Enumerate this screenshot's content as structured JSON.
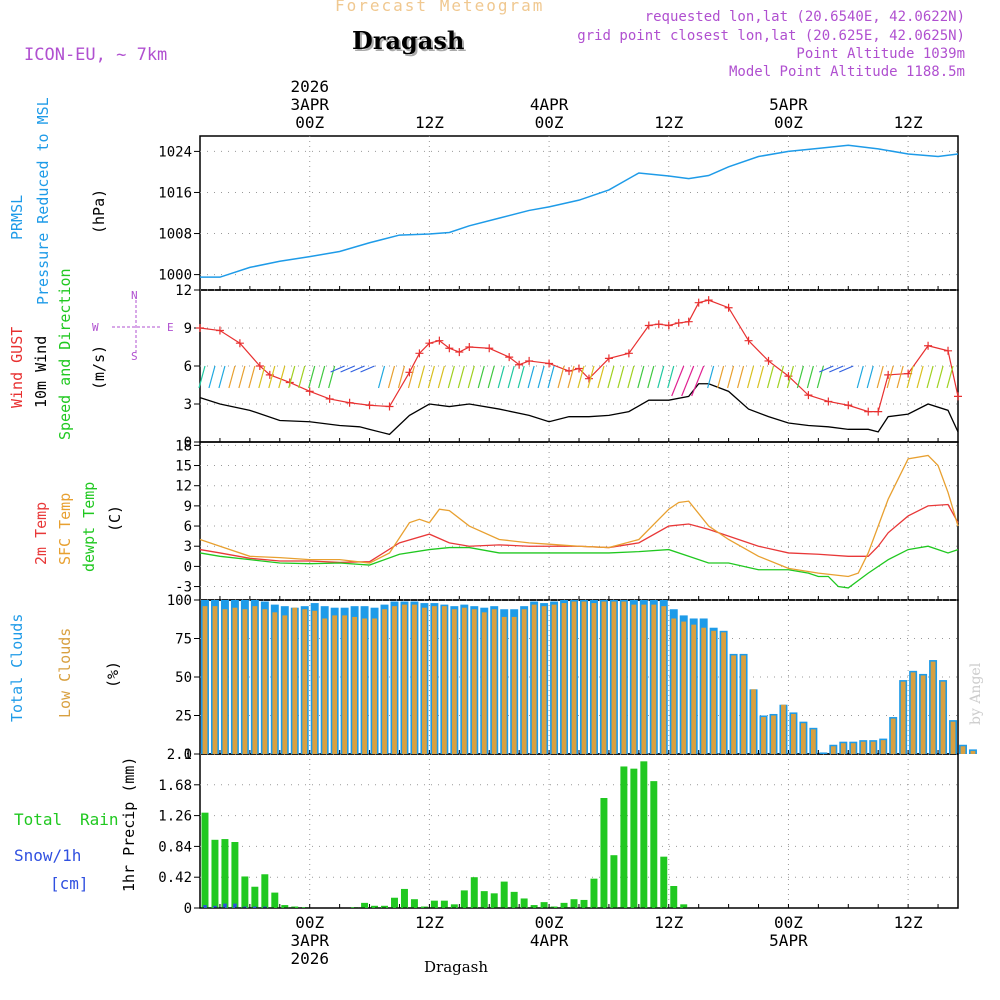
{
  "header": {
    "subtitle": "Forecast Meteogram",
    "location": "Dragash",
    "model": "ICON-EU, ~ 7km",
    "requested": "requested lon,lat (20.6540E, 42.0622N)",
    "grid_point": "grid point closest lon,lat (20.625E, 42.0625N)",
    "point_alt": "Point Altitude 1039m",
    "model_alt": "Model Point Altitude 1188.5m"
  },
  "time_axis": {
    "top": [
      {
        "lines": [
          "2026",
          "3APR",
          "00Z"
        ],
        "hour": 24
      },
      {
        "lines": [
          "12Z"
        ],
        "hour": 36
      },
      {
        "lines": [
          "4APR",
          "00Z"
        ],
        "hour": 48
      },
      {
        "lines": [
          "12Z"
        ],
        "hour": 60
      },
      {
        "lines": [
          "5APR",
          "00Z"
        ],
        "hour": 72
      },
      {
        "lines": [
          "12Z"
        ],
        "hour": 84
      }
    ],
    "bottom": [
      {
        "lines": [
          "00Z",
          "3APR",
          "2026"
        ],
        "hour": 24
      },
      {
        "lines": [
          "12Z"
        ],
        "hour": 36
      },
      {
        "lines": [
          "00Z",
          "4APR"
        ],
        "hour": 48
      },
      {
        "lines": [
          "12Z"
        ],
        "hour": 60
      },
      {
        "lines": [
          "00Z",
          "5APR"
        ],
        "hour": 72
      },
      {
        "lines": [
          "12Z"
        ],
        "hour": 84
      }
    ],
    "hour_range": [
      13,
      89
    ]
  },
  "labels": {
    "prmsl": "PRMSL",
    "pressure": "Pressure Reduced to MSL",
    "hpa": "(hPa)",
    "gust": "Wind GUST",
    "wind10": "10m Wind",
    "speed_dir": "Speed and Direction",
    "ms": "(m/s)",
    "compass_n": "N",
    "compass_s": "S",
    "compass_w": "W",
    "compass_e": "E",
    "t2m": "2m Temp",
    "sfc": "SFC Temp",
    "dewpt": "dewpt Temp",
    "celsius": "(C)",
    "total_clouds": "Total Clouds",
    "low_clouds": "Low Clouds",
    "pct": "(%)",
    "total": "Total",
    "rain": "Rain",
    "snow": "Snow/1h",
    "cm": "[cm]",
    "precip": "1hr Precip (mm)",
    "watermark": "by Angel",
    "footer_location": "Dragash"
  },
  "colors": {
    "pressure": "#1e9be8",
    "gust": "#e83030",
    "wind": "#000000",
    "t2m": "#e83838",
    "sfc": "#e8a030",
    "dew": "#20c820",
    "total_cloud": "#1e9be8",
    "low_cloud": "#d8a040",
    "rain": "#20c820",
    "snow": "#3050e0",
    "label_purple": "#b050d0"
  },
  "chart_data": [
    {
      "type": "line",
      "title": "PRMSL Pressure Reduced to MSL",
      "ylabel": "(hPa)",
      "ylim": [
        997,
        1027
      ],
      "yticks": [
        1000,
        1008,
        1016,
        1024
      ],
      "series": [
        {
          "name": "PRMSL",
          "x": [
            13,
            15,
            18,
            21,
            24,
            27,
            30,
            33,
            36,
            38,
            40,
            43,
            46,
            48,
            51,
            54,
            57,
            60,
            62,
            64,
            66,
            69,
            72,
            75,
            78,
            81,
            84,
            87,
            89
          ],
          "values": [
            999.5,
            999.5,
            1001.4,
            1002.6,
            1003.5,
            1004.5,
            1006.2,
            1007.7,
            1007.9,
            1008.2,
            1009.5,
            1011,
            1012.5,
            1013.2,
            1014.5,
            1016.5,
            1019.8,
            1019.2,
            1018.7,
            1019.3,
            1021,
            1023,
            1024,
            1024.6,
            1025.2,
            1024.5,
            1023.5,
            1023,
            1023.5
          ]
        }
      ]
    },
    {
      "type": "line",
      "title": "Wind GUST / 10m Wind Speed and Direction",
      "ylabel": "(m/s)",
      "ylim": [
        0,
        12
      ],
      "yticks": [
        0,
        3,
        6,
        9,
        12
      ],
      "series": [
        {
          "name": "Wind GUST",
          "x": [
            13,
            15,
            17,
            19,
            20,
            22,
            24,
            26,
            28,
            30,
            32,
            34,
            35,
            36,
            37,
            38,
            39,
            40,
            42,
            44,
            45,
            46,
            48,
            50,
            51,
            52,
            54,
            56,
            58,
            59,
            60,
            61,
            62,
            63,
            64,
            66,
            68,
            70,
            72,
            74,
            76,
            78,
            80,
            81,
            82,
            84,
            86,
            88,
            89
          ],
          "values": [
            9,
            8.8,
            7.8,
            6,
            5.3,
            4.7,
            4,
            3.4,
            3.1,
            2.9,
            2.8,
            5.5,
            7,
            7.8,
            8,
            7.4,
            7.1,
            7.5,
            7.4,
            6.7,
            6.1,
            6.4,
            6.2,
            5.6,
            5.8,
            5,
            6.6,
            7,
            9.2,
            9.3,
            9.2,
            9.4,
            9.5,
            11,
            11.2,
            10.6,
            8,
            6.4,
            5.2,
            3.7,
            3.2,
            2.9,
            2.4,
            2.4,
            5.3,
            5.4,
            7.6,
            7.2,
            3.6
          ]
        },
        {
          "name": "10m Wind",
          "x": [
            13,
            15,
            18,
            21,
            24,
            27,
            29,
            30,
            32,
            34,
            36,
            38,
            40,
            43,
            46,
            48,
            50,
            52,
            54,
            56,
            58,
            60,
            62,
            63,
            64,
            66,
            68,
            70,
            72,
            74,
            76,
            78,
            80,
            81,
            82,
            84,
            86,
            88,
            89
          ],
          "values": [
            3.5,
            3,
            2.5,
            1.7,
            1.6,
            1.3,
            1.2,
            1,
            0.6,
            2.1,
            3,
            2.8,
            3,
            2.6,
            2.1,
            1.6,
            2,
            2,
            2.1,
            2.4,
            3.3,
            3.3,
            3.6,
            4.6,
            4.6,
            4,
            2.6,
            2,
            1.5,
            1.3,
            1.2,
            1,
            1,
            0.8,
            2,
            2.2,
            3,
            2.5,
            0.8
          ]
        }
      ],
      "wind_direction": "arrows drawn at 6 m/s line, mostly from NE/ENE"
    },
    {
      "type": "line",
      "title": "2m Temp / SFC Temp / dewpt Temp",
      "ylabel": "(C)",
      "ylim": [
        -5,
        18.5
      ],
      "yticks": [
        -3,
        0,
        3,
        6,
        9,
        12,
        15,
        18
      ],
      "series": [
        {
          "name": "2m Temp",
          "x": [
            13,
            15,
            18,
            21,
            24,
            27,
            30,
            33,
            36,
            38,
            40,
            43,
            46,
            48,
            51,
            54,
            57,
            60,
            62,
            64,
            66,
            69,
            72,
            75,
            78,
            80,
            81,
            82,
            84,
            86,
            88,
            89
          ],
          "values": [
            2.5,
            2,
            1.2,
            0.8,
            0.8,
            0.6,
            0.7,
            3.5,
            4.8,
            3.5,
            3,
            3.2,
            3,
            3,
            3,
            2.8,
            3.5,
            6,
            6.3,
            5.5,
            4.5,
            3,
            2,
            1.8,
            1.5,
            1.5,
            3,
            5,
            7.5,
            9,
            9.2,
            6.5
          ]
        },
        {
          "name": "SFC Temp",
          "x": [
            13,
            15,
            18,
            21,
            24,
            27,
            30,
            32,
            34,
            35,
            36,
            37,
            38,
            40,
            43,
            46,
            48,
            51,
            54,
            57,
            59,
            60,
            61,
            62,
            64,
            66,
            69,
            72,
            75,
            78,
            79,
            80,
            82,
            84,
            86,
            87,
            88,
            89
          ],
          "values": [
            4,
            3,
            1.5,
            1.3,
            1,
            1,
            0.5,
            2,
            6.5,
            7,
            6.5,
            8.5,
            8.3,
            6,
            4,
            3.5,
            3.3,
            3,
            2.8,
            4,
            7,
            8.5,
            9.5,
            9.7,
            6,
            4,
            1.5,
            -0.3,
            -1,
            -1.5,
            -1,
            2,
            10,
            16,
            16.5,
            15,
            11,
            6
          ]
        },
        {
          "name": "dewpt Temp",
          "x": [
            13,
            15,
            18,
            21,
            24,
            27,
            30,
            33,
            36,
            38,
            40,
            43,
            46,
            48,
            51,
            54,
            57,
            60,
            62,
            64,
            66,
            69,
            72,
            74,
            75,
            76,
            77,
            78,
            80,
            82,
            84,
            86,
            88,
            89
          ],
          "values": [
            2,
            1.5,
            1,
            0.5,
            0.4,
            0.5,
            0.2,
            1.8,
            2.5,
            2.8,
            2.8,
            2,
            2,
            2,
            2,
            2,
            2.2,
            2.5,
            1.5,
            0.5,
            0.5,
            -0.5,
            -0.5,
            -1,
            -1.5,
            -1.5,
            -3,
            -3.2,
            -1,
            1,
            2.5,
            3,
            2,
            2.5
          ]
        }
      ]
    },
    {
      "type": "bar",
      "title": "Total Clouds / Low Clouds",
      "ylabel": "(%)",
      "ylim": [
        0,
        100
      ],
      "yticks": [
        0,
        25,
        50,
        75,
        100
      ],
      "x_start_hour": 13,
      "series": [
        {
          "name": "Total Clouds",
          "values": [
            100,
            100,
            100,
            100,
            100,
            100,
            99,
            97,
            96,
            95,
            96,
            98,
            96,
            95,
            95,
            96,
            96,
            95,
            97,
            99,
            99,
            99,
            98,
            98,
            97,
            96,
            97,
            96,
            95,
            96,
            94,
            94,
            96,
            99,
            98,
            99,
            100,
            100,
            100,
            100,
            100,
            100,
            100,
            100,
            100,
            100,
            100,
            94,
            90,
            88,
            88,
            82,
            80,
            65,
            65,
            42,
            25,
            26,
            32,
            27,
            21,
            17,
            1,
            6,
            8,
            8,
            9,
            9,
            10,
            24,
            48,
            54,
            52,
            61,
            48,
            22,
            6,
            3
          ]
        },
        {
          "name": "Low Clouds",
          "values": [
            96,
            96,
            94,
            95,
            94,
            96,
            94,
            92,
            90,
            95,
            94,
            93,
            88,
            90,
            90,
            89,
            88,
            88,
            94,
            96,
            97,
            97,
            95,
            96,
            96,
            94,
            95,
            94,
            92,
            94,
            89,
            89,
            94,
            97,
            96,
            97,
            98,
            99,
            99,
            98,
            99,
            99,
            99,
            97,
            97,
            97,
            96,
            88,
            86,
            84,
            82,
            80,
            79,
            64,
            64,
            42,
            24,
            25,
            32,
            26,
            20,
            16,
            0,
            5,
            7,
            7,
            8,
            8,
            9,
            23,
            47,
            53,
            51,
            60,
            47,
            21,
            5,
            2
          ]
        }
      ]
    },
    {
      "type": "bar",
      "title": "1hr Precip (mm)",
      "ylabel": "1hr Precip (mm)",
      "ylim": [
        0,
        2.1
      ],
      "yticks": [
        0,
        0.42,
        0.84,
        1.26,
        1.68,
        2.1
      ],
      "x_start_hour": 13,
      "series": [
        {
          "name": "Total Rain",
          "values": [
            1.3,
            0.93,
            0.94,
            0.9,
            0.43,
            0.29,
            0.46,
            0.21,
            0.04,
            0.02,
            0.01,
            0,
            0,
            0,
            0,
            0.01,
            0.07,
            0.03,
            0.03,
            0.14,
            0.26,
            0.12,
            0.02,
            0.1,
            0.1,
            0.05,
            0.24,
            0.42,
            0.23,
            0.2,
            0.36,
            0.22,
            0.13,
            0.04,
            0.08,
            0.02,
            0.07,
            0.12,
            0.11,
            0.4,
            1.5,
            0.72,
            1.93,
            1.9,
            2.0,
            1.73,
            0.7,
            0.3,
            0.05,
            0,
            0,
            0,
            0,
            0,
            0,
            0,
            0,
            0,
            0,
            0,
            0,
            0,
            0,
            0,
            0,
            0,
            0,
            0,
            0,
            0,
            0,
            0,
            0,
            0,
            0,
            0,
            0,
            0
          ]
        },
        {
          "name": "Snow/1h",
          "values": [
            0.04,
            0.03,
            0.06,
            0.06,
            0.02,
            0.02,
            0.02,
            0,
            0,
            0,
            0,
            0,
            0,
            0,
            0,
            0,
            0,
            0,
            0,
            0,
            0,
            0,
            0,
            0,
            0,
            0,
            0,
            0,
            0,
            0,
            0,
            0,
            0,
            0,
            0,
            0,
            0,
            0,
            0,
            0,
            0,
            0,
            0,
            0,
            0,
            0,
            0,
            0,
            0,
            0,
            0,
            0,
            0,
            0,
            0,
            0,
            0,
            0,
            0,
            0,
            0,
            0,
            0,
            0,
            0,
            0,
            0,
            0,
            0,
            0,
            0,
            0,
            0,
            0,
            0,
            0,
            0,
            0
          ]
        }
      ]
    }
  ]
}
